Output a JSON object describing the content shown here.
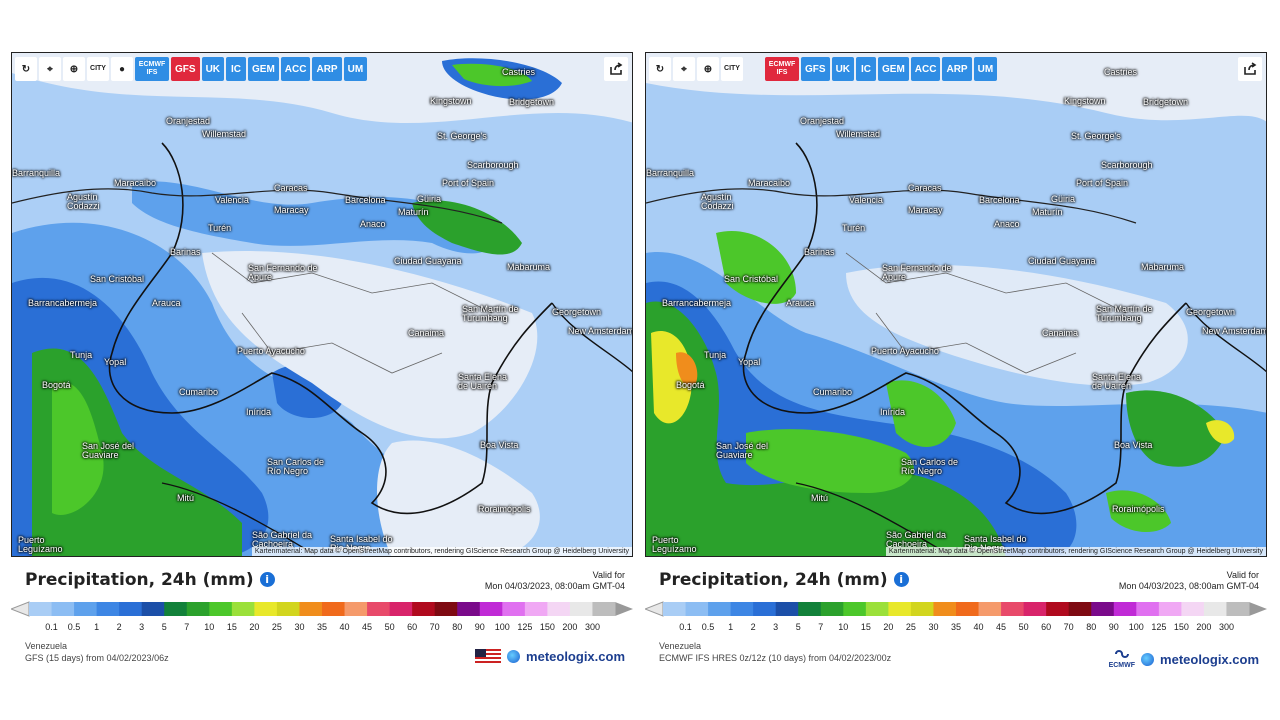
{
  "panels": [
    {
      "id": "gfs",
      "toolbar": {
        "buttons": [
          {
            "name": "reload-icon",
            "label": "↻"
          },
          {
            "name": "location-icon",
            "label": "⌖"
          },
          {
            "name": "zoom-icon",
            "label": "⊕"
          },
          {
            "name": "city-toggle-icon",
            "label": "CITY"
          },
          {
            "name": "dot-icon",
            "label": "●"
          }
        ],
        "models": [
          "ECMWF IFS",
          "GFS",
          "UK",
          "IC",
          "GEM",
          "ACC",
          "ARP",
          "UM"
        ],
        "active_model": "GFS"
      },
      "cities": [
        "Castries",
        "Kingstown",
        "Bridgetown",
        "Oranjestad",
        "Willemstad",
        "St. George's",
        "Scarborough",
        "Port of Spain",
        "Maracaibo",
        "Caracas",
        "Valencia",
        "Maracay",
        "Barcelona",
        "Güiria",
        "Maturín",
        "Agustín Codazzi",
        "Barranquilla",
        "Barinas",
        "Turén",
        "Anaco",
        "Ciudad Guayana",
        "San Fernando de Apure",
        "Mabaruma",
        "San Cristóbal",
        "Barrancabermeja",
        "Arauca",
        "San Martín de Turumbang",
        "Georgetown",
        "New Amsterdam",
        "Canaima",
        "Puerto Ayacucho",
        "Tunja",
        "Yopal",
        "Bogotá",
        "Santa Elena de Uairén",
        "Cumaribo",
        "Inírida",
        "Boa Vista",
        "San José del Guaviare",
        "San Carlos de Río Negro",
        "Mitú",
        "Roraimópolis",
        "Puerto Leguízamo",
        "São Gabriel da Cachoeira",
        "Santa Isabel do Rio Negro"
      ],
      "attribution": "Kartenmaterial: Map data © OpenStreetMap contributors, rendering GIScience Research Group @ Heidelberg University",
      "title": "Precipitation, 24h (mm)",
      "info_icon": "i",
      "valid_label": "Valid for",
      "valid_time": "Mon 04/03/2023, 08:00am GMT-04",
      "region": "Venezuela",
      "source": "GFS (15 days) from 04/02/2023/06z",
      "brand": "meteologix.com"
    },
    {
      "id": "ecmwf",
      "toolbar": {
        "buttons": [
          {
            "name": "reload-icon",
            "label": "↻"
          },
          {
            "name": "location-icon",
            "label": "⌖"
          },
          {
            "name": "zoom-icon",
            "label": "⊕"
          },
          {
            "name": "city-toggle-icon",
            "label": "CITY"
          }
        ],
        "models": [
          "ECMWF IFS",
          "GFS",
          "UK",
          "IC",
          "GEM",
          "ACC",
          "ARP",
          "UM"
        ],
        "active_model": "ECMWF IFS"
      },
      "cities": [
        "Castries",
        "Kingstown",
        "Bridgetown",
        "Oranjestad",
        "Willemstad",
        "St. George's",
        "Scarborough",
        "Port of Spain",
        "Maracaibo",
        "Caracas",
        "Valencia",
        "Maracay",
        "Barcelona",
        "Güiria",
        "Maturín",
        "Agustín Codazzi",
        "Barranquilla",
        "Barinas",
        "Turén",
        "Anaco",
        "Ciudad Guayana",
        "San Fernando de Apure",
        "Mabaruma",
        "San Cristóbal",
        "Barrancabermeja",
        "Arauca",
        "San Martín de Turumbang",
        "Georgetown",
        "New Amsterdam",
        "Canaima",
        "Puerto Ayacucho",
        "Tunja",
        "Yopal",
        "Bogotá",
        "Santa Elena de Uairén",
        "Cumaribo",
        "Inírida",
        "Boa Vista",
        "San José del Guaviare",
        "San Carlos de Río Negro",
        "Mitú",
        "Roraimópolis",
        "Puerto Leguízamo",
        "São Gabriel da Cachoeira",
        "Santa Isabel do Rio Negro"
      ],
      "attribution": "Kartenmaterial: Map data © OpenStreetMap contributors, rendering GIScience Research Group @ Heidelberg University",
      "title": "Precipitation, 24h (mm)",
      "info_icon": "i",
      "valid_label": "Valid for",
      "valid_time": "Mon 04/03/2023, 08:00am GMT-04",
      "region": "Venezuela",
      "source": "ECMWF IFS HRES 0z/12z (10 days) from 04/02/2023/00z",
      "brand": "meteologix.com",
      "brand_logo_text": "ECMWF"
    }
  ],
  "legend": {
    "ticks": [
      "0.1",
      "0.5",
      "1",
      "2",
      "3",
      "5",
      "7",
      "10",
      "15",
      "20",
      "25",
      "30",
      "35",
      "40",
      "45",
      "50",
      "60",
      "70",
      "80",
      "90",
      "100",
      "125",
      "150",
      "200",
      "300"
    ],
    "colors": [
      "#a9cdf5",
      "#8cbdf3",
      "#5ea1ec",
      "#3d86e4",
      "#2a6fd6",
      "#1c4fa8",
      "#12813a",
      "#2ba12c",
      "#4cc72a",
      "#9be03a",
      "#e8e82a",
      "#d2d51e",
      "#f08d1c",
      "#f06a1c",
      "#f59a6b",
      "#e84a6a",
      "#d8246a",
      "#b00a1e",
      "#7e0a12",
      "#7a0a8a",
      "#c02ad6",
      "#e070f0",
      "#f0a8f4",
      "#f4d6f4",
      "#e8e8e8",
      "#bdbdbd"
    ]
  },
  "colors": {
    "land_light": "#e6edf7",
    "rain_light": "#a9cdf5",
    "rain_mid": "#5ea1ec",
    "rain_blue": "#2a6fd6",
    "rain_green": "#2ba12c",
    "rain_lime": "#8fd63a",
    "rain_yellow": "#e8e82a",
    "active_model": "#e0283d",
    "model_button": "#2f8de4"
  }
}
